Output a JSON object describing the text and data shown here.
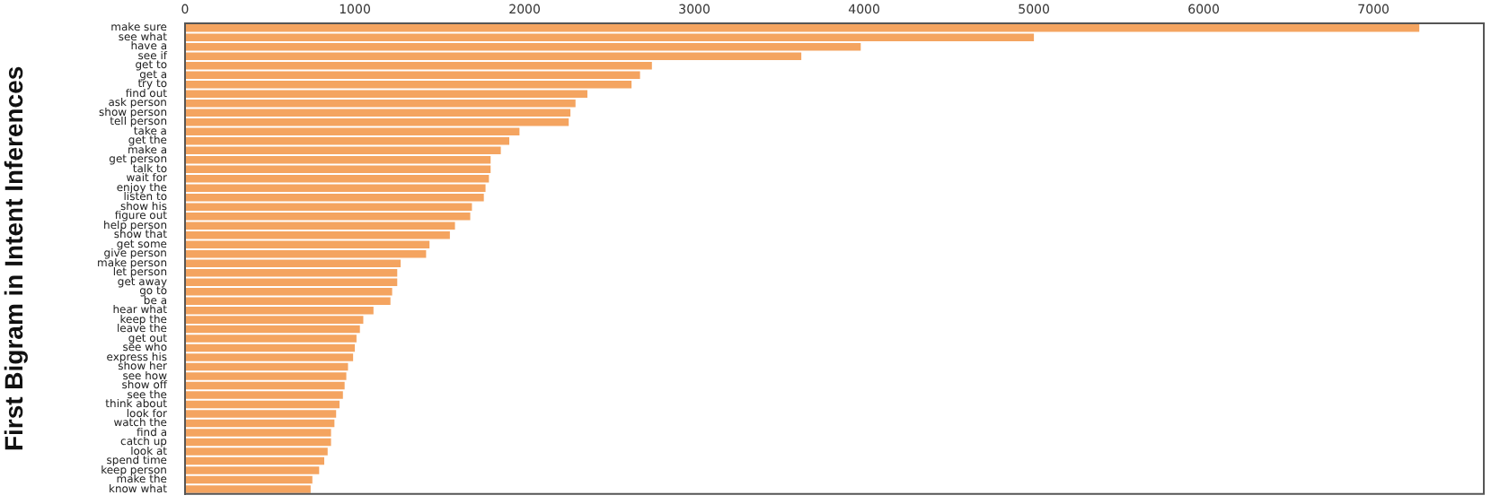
{
  "chart_data": {
    "type": "bar",
    "orientation": "horizontal",
    "ylabel": "First Bigram in Intent Inferences",
    "categories": [
      "make sure",
      "see what",
      "have a",
      "see if",
      "get to",
      "get a",
      "try to",
      "find out",
      "ask person",
      "show person",
      "tell person",
      "take a",
      "get the",
      "make a",
      "get person",
      "talk to",
      "wait for",
      "enjoy the",
      "listen to",
      "show his",
      "figure out",
      "help person",
      "show that",
      "get some",
      "give person",
      "make person",
      "let person",
      "get away",
      "go to",
      "be a",
      "hear what",
      "keep the",
      "leave the",
      "get out",
      "see who",
      "express his",
      "show her",
      "see how",
      "show off",
      "see the",
      "think about",
      "look for",
      "watch the",
      "find a",
      "catch up",
      "look at",
      "spend time",
      "keep person",
      "make the",
      "know what"
    ],
    "values": [
      7270,
      5000,
      3980,
      3630,
      2750,
      2680,
      2630,
      2370,
      2300,
      2270,
      2260,
      1970,
      1910,
      1860,
      1800,
      1800,
      1790,
      1770,
      1760,
      1690,
      1680,
      1590,
      1560,
      1440,
      1420,
      1270,
      1250,
      1250,
      1220,
      1210,
      1110,
      1050,
      1030,
      1010,
      1000,
      990,
      960,
      950,
      940,
      930,
      910,
      890,
      880,
      860,
      860,
      840,
      820,
      790,
      750,
      740
    ],
    "color": "#f4a460",
    "xlim": [
      0,
      7650
    ],
    "xticks": [
      0,
      1000,
      2000,
      3000,
      4000,
      5000,
      6000,
      7000
    ],
    "grid": false,
    "legend": false
  }
}
